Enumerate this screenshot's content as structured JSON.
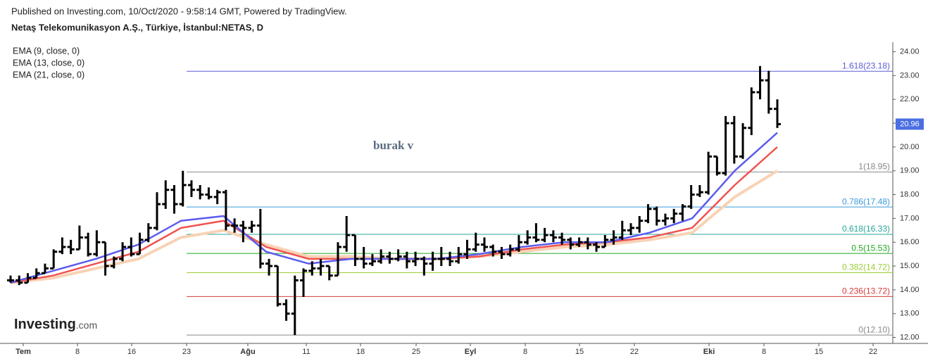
{
  "header": {
    "published": "Published on Investing.com, 10/Oct/2020 - 9:58:14 GMT, Powered by TradingView.",
    "symbol": "Netaş Telekomunikasyon A.Ş., Türkiye, İstanbul:NETAS, D"
  },
  "logo": {
    "brand": "Investing",
    "suffix": ".com"
  },
  "chart_data": {
    "type": "ohlc",
    "annotation": "burak v",
    "last_price": 20.96,
    "ylim": [
      11.75,
      24.4
    ],
    "yticks": [
      {
        "value": 12,
        "label": "12.00"
      },
      {
        "value": 13,
        "label": "13.00"
      },
      {
        "value": 14,
        "label": "14.00"
      },
      {
        "value": 15,
        "label": "15.00"
      },
      {
        "value": 16,
        "label": "16.00"
      },
      {
        "value": 17,
        "label": "17.00"
      },
      {
        "value": 18,
        "label": "18.00"
      },
      {
        "value": 19,
        "label": "19.00"
      },
      {
        "value": 20,
        "label": "20.00"
      },
      {
        "value": 21,
        "label": "21.00"
      },
      {
        "value": 22,
        "label": "22.00"
      },
      {
        "value": 23,
        "label": "23.00"
      },
      {
        "value": 24,
        "label": "24.00"
      }
    ],
    "xticks": [
      "Tem",
      "8",
      "16",
      "23",
      "Ağu",
      "11",
      "18",
      "25",
      "Eyl",
      "8",
      "15",
      "22",
      "Eki",
      "8",
      "15",
      "22"
    ],
    "fib_levels": [
      {
        "label": "1.618(23.18)",
        "value": 23.18,
        "color": "#5b5bd6"
      },
      {
        "label": "1(18.95)",
        "value": 18.95,
        "color": "#888888"
      },
      {
        "label": "0.786(17.48)",
        "value": 17.48,
        "color": "#3a9ad9"
      },
      {
        "label": "0.618(16.33)",
        "value": 16.33,
        "color": "#26a69a"
      },
      {
        "label": "0.5(15.53)",
        "value": 15.53,
        "color": "#1fa81f"
      },
      {
        "label": "0.382(14.72)",
        "value": 14.72,
        "color": "#9acd32"
      },
      {
        "label": "0.236(13.72)",
        "value": 13.72,
        "color": "#d63b3b"
      },
      {
        "label": "0(12.10)",
        "value": 12.1,
        "color": "#888888"
      }
    ],
    "ohlc": [
      [
        14.4,
        14.6,
        14.3,
        14.4
      ],
      [
        14.4,
        14.6,
        14.2,
        14.3
      ],
      [
        14.3,
        14.7,
        14.3,
        14.5
      ],
      [
        14.5,
        14.9,
        14.5,
        14.7
      ],
      [
        14.7,
        15.1,
        14.7,
        14.9
      ],
      [
        14.9,
        15.7,
        14.9,
        15.6
      ],
      [
        15.6,
        16.2,
        15.5,
        15.8
      ],
      [
        15.8,
        16.1,
        15.5,
        15.7
      ],
      [
        15.7,
        16.7,
        15.7,
        16.2
      ],
      [
        16.2,
        16.4,
        15.4,
        15.5
      ],
      [
        15.5,
        16.5,
        15.4,
        16.0
      ],
      [
        16.0,
        16.0,
        14.6,
        15.0
      ],
      [
        15.0,
        15.4,
        14.9,
        15.3
      ],
      [
        15.3,
        16.0,
        15.2,
        15.8
      ],
      [
        15.8,
        16.2,
        15.4,
        15.5
      ],
      [
        15.5,
        16.4,
        15.5,
        16.1
      ],
      [
        16.1,
        16.8,
        16.0,
        16.6
      ],
      [
        16.6,
        18.1,
        16.5,
        17.6
      ],
      [
        17.6,
        18.6,
        17.4,
        18.2
      ],
      [
        18.2,
        18.4,
        17.2,
        17.6
      ],
      [
        17.6,
        19.0,
        17.5,
        18.4
      ],
      [
        18.4,
        18.6,
        17.9,
        18.2
      ],
      [
        18.2,
        18.4,
        17.8,
        18.0
      ],
      [
        18.0,
        18.3,
        17.8,
        17.9
      ],
      [
        17.9,
        18.2,
        17.6,
        18.1
      ],
      [
        18.1,
        18.2,
        16.5,
        16.7
      ],
      [
        16.7,
        17.0,
        16.4,
        16.7
      ],
      [
        16.7,
        16.9,
        16.0,
        16.6
      ],
      [
        16.6,
        16.9,
        16.4,
        16.7
      ],
      [
        16.7,
        17.4,
        14.9,
        15.1
      ],
      [
        15.1,
        15.3,
        14.6,
        15.0
      ],
      [
        15.0,
        15.0,
        13.3,
        13.4
      ],
      [
        13.4,
        13.6,
        12.7,
        13.0
      ],
      [
        13.0,
        14.6,
        12.1,
        14.4
      ],
      [
        14.4,
        14.9,
        13.7,
        14.8
      ],
      [
        14.8,
        15.2,
        14.6,
        14.9
      ],
      [
        14.9,
        15.3,
        14.6,
        15.0
      ],
      [
        15.0,
        15.0,
        14.4,
        14.6
      ],
      [
        14.6,
        16.0,
        14.6,
        15.8
      ],
      [
        15.8,
        17.1,
        15.6,
        16.3
      ],
      [
        16.3,
        16.3,
        15.0,
        15.3
      ],
      [
        15.3,
        15.8,
        14.9,
        15.1
      ],
      [
        15.1,
        15.5,
        15.0,
        15.2
      ],
      [
        15.2,
        15.7,
        15.1,
        15.4
      ],
      [
        15.4,
        15.6,
        15.1,
        15.3
      ],
      [
        15.3,
        15.7,
        15.2,
        15.4
      ],
      [
        15.4,
        15.6,
        14.9,
        15.2
      ],
      [
        15.2,
        15.6,
        15.0,
        15.3
      ],
      [
        15.3,
        15.4,
        14.6,
        15.1
      ],
      [
        15.1,
        15.6,
        14.8,
        15.3
      ],
      [
        15.3,
        15.8,
        15.0,
        15.3
      ],
      [
        15.3,
        15.6,
        15.0,
        15.2
      ],
      [
        15.2,
        15.8,
        15.1,
        15.5
      ],
      [
        15.5,
        16.1,
        15.3,
        15.7
      ],
      [
        15.7,
        16.4,
        15.6,
        15.9
      ],
      [
        15.9,
        16.2,
        15.6,
        15.8
      ],
      [
        15.8,
        15.9,
        15.4,
        15.6
      ],
      [
        15.6,
        15.8,
        15.3,
        15.5
      ],
      [
        15.5,
        15.9,
        15.4,
        15.7
      ],
      [
        15.7,
        16.3,
        15.6,
        16.0
      ],
      [
        16.0,
        16.5,
        15.9,
        16.2
      ],
      [
        16.2,
        16.8,
        16.0,
        16.1
      ],
      [
        16.1,
        16.6,
        16.0,
        16.3
      ],
      [
        16.3,
        16.5,
        16.0,
        16.2
      ],
      [
        16.2,
        16.4,
        15.9,
        16.1
      ],
      [
        16.1,
        16.2,
        15.7,
        15.9
      ],
      [
        15.9,
        16.2,
        15.8,
        16.0
      ],
      [
        16.0,
        16.2,
        15.7,
        15.9
      ],
      [
        15.9,
        16.0,
        15.6,
        15.8
      ],
      [
        15.8,
        16.3,
        15.8,
        16.1
      ],
      [
        16.1,
        16.5,
        15.9,
        16.2
      ],
      [
        16.2,
        16.9,
        16.1,
        16.5
      ],
      [
        16.5,
        16.8,
        16.3,
        16.6
      ],
      [
        16.6,
        17.1,
        16.4,
        16.9
      ],
      [
        16.9,
        17.6,
        16.8,
        17.4
      ],
      [
        17.4,
        17.5,
        16.7,
        16.9
      ],
      [
        16.9,
        17.2,
        16.7,
        17.0
      ],
      [
        17.0,
        17.4,
        16.8,
        17.2
      ],
      [
        17.2,
        17.6,
        16.9,
        17.5
      ],
      [
        17.5,
        18.4,
        17.4,
        18.0
      ],
      [
        18.0,
        18.4,
        17.9,
        18.1
      ],
      [
        18.1,
        19.8,
        18.0,
        19.6
      ],
      [
        19.6,
        19.6,
        18.8,
        18.9
      ],
      [
        18.9,
        21.3,
        18.8,
        21.0
      ],
      [
        21.0,
        21.3,
        19.3,
        19.6
      ],
      [
        19.6,
        21.0,
        19.5,
        20.8
      ],
      [
        20.8,
        22.5,
        20.5,
        22.3
      ],
      [
        22.3,
        23.4,
        22.0,
        22.8
      ],
      [
        22.8,
        23.2,
        21.4,
        21.6
      ],
      [
        21.6,
        22.0,
        20.8,
        20.96
      ]
    ],
    "series": [
      {
        "name": "EMA (9, close, 0)",
        "color": "#5b5bef",
        "values": [
          14.3,
          14.8,
          15.3,
          15.9,
          16.9,
          17.1,
          15.6,
          15.1,
          15.3,
          15.3,
          15.3,
          15.5,
          15.8,
          16.0,
          16.0,
          16.4,
          17.0,
          19.0,
          20.6
        ]
      },
      {
        "name": "EMA (13, close, 0)",
        "color": "#ef5350",
        "values": [
          14.3,
          14.6,
          15.1,
          15.6,
          16.6,
          16.9,
          15.8,
          15.3,
          15.3,
          15.3,
          15.3,
          15.4,
          15.7,
          15.9,
          16.0,
          16.2,
          16.6,
          18.4,
          20.0
        ]
      },
      {
        "name": "EMA (21, close, 0)",
        "color": "#f8d2b4",
        "values": [
          14.3,
          14.5,
          14.9,
          15.3,
          16.2,
          16.5,
          15.9,
          15.4,
          15.4,
          15.3,
          15.3,
          15.4,
          15.6,
          15.8,
          15.9,
          16.1,
          16.4,
          17.9,
          19.0
        ]
      }
    ]
  }
}
